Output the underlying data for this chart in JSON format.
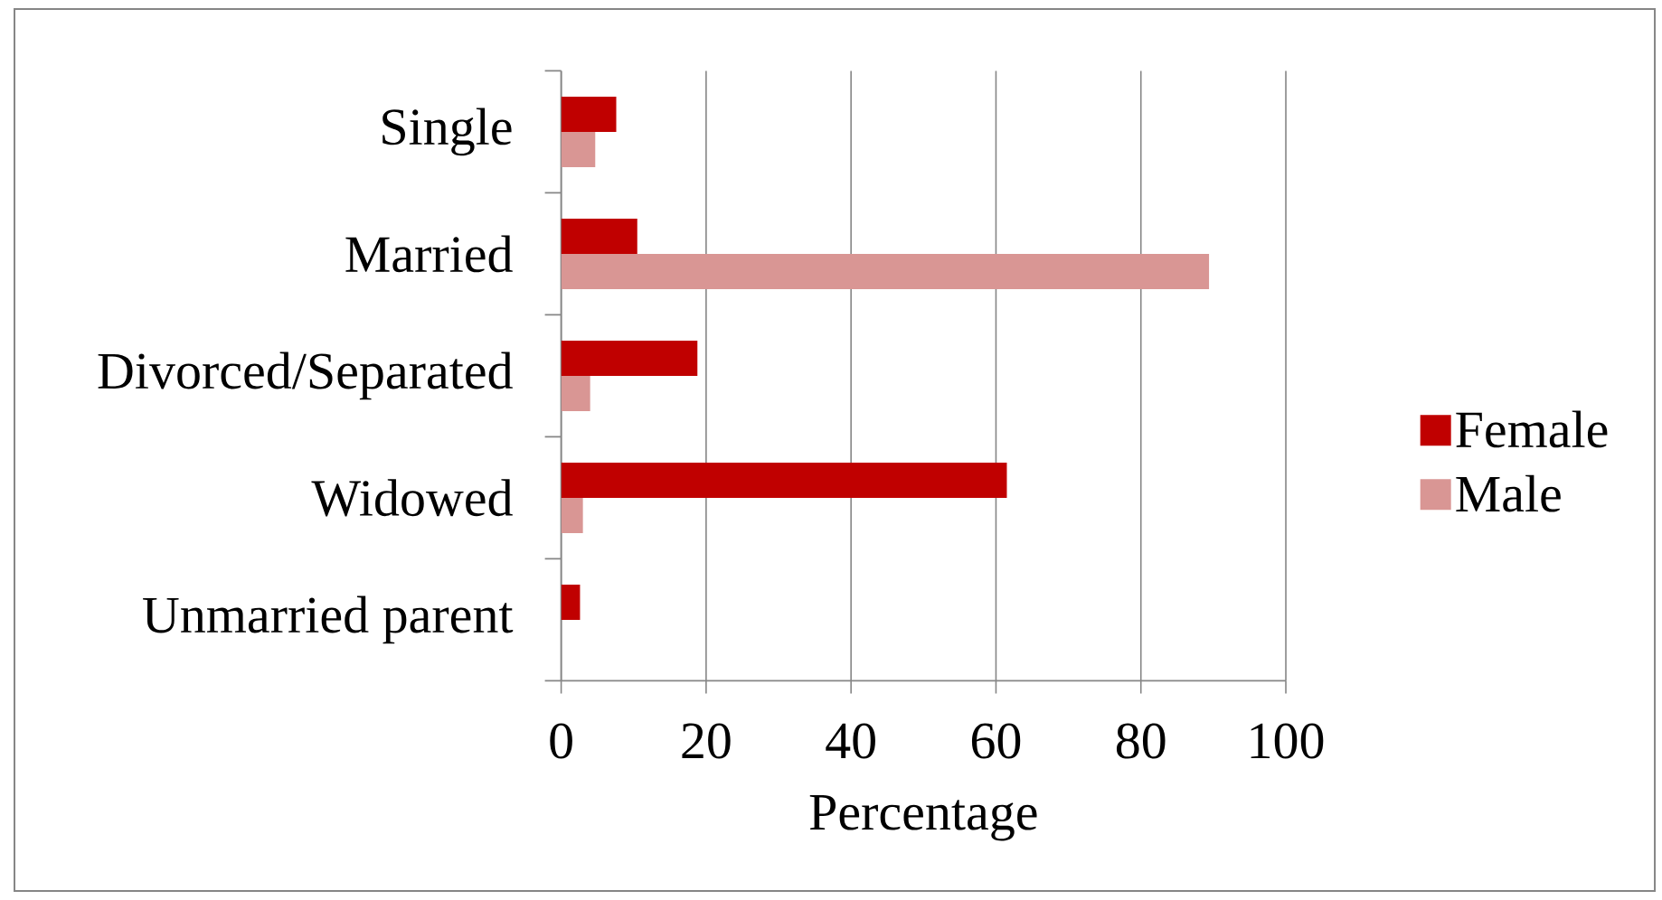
{
  "chart_data": {
    "type": "bar",
    "orientation": "horizontal",
    "categories": [
      "Single",
      "Married",
      "Divorced/Separated",
      "Widowed",
      "Unmarried parent"
    ],
    "series": [
      {
        "name": "Female",
        "color": "#c00000",
        "values": [
          7.6,
          10.5,
          18.8,
          61.5,
          2.6
        ]
      },
      {
        "name": "Male",
        "color": "#d99694",
        "values": [
          4.7,
          89.4,
          4.0,
          3.0,
          null
        ]
      }
    ],
    "xlabel": "Percentage",
    "xlim": [
      0,
      100
    ],
    "xticks": [
      0,
      20,
      40,
      60,
      80,
      100
    ],
    "grid": "x",
    "legend": "right"
  }
}
